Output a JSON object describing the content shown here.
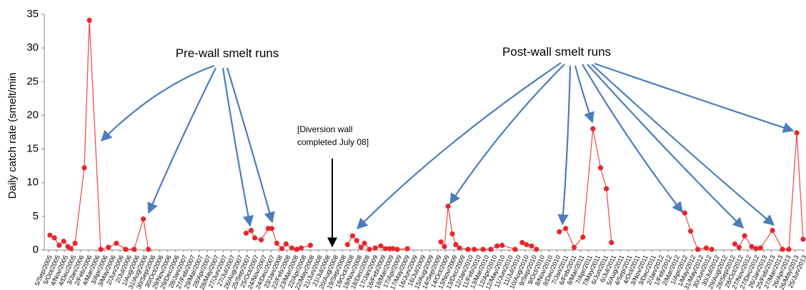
{
  "chart_data": {
    "type": "line",
    "y_label": "Daily catch rate (smelt/min",
    "annotations": [
      "Pre-wall smelt runs",
      "Post-wall smelt runs",
      "[Diversion wall",
      "completed July 08]"
    ],
    "xlim": [
      "2005-09-05",
      "2013-06-25"
    ],
    "ylim": [
      0,
      35
    ],
    "yticks": [
      0,
      5,
      10,
      15,
      20,
      25,
      30,
      35
    ],
    "xticks": [
      {
        "value": "2005-09-05",
        "label": "5/Sep/2005"
      },
      {
        "value": "2005-10-05",
        "label": "5/Oct/2005"
      },
      {
        "value": "2005-11-04",
        "label": "4/Nov/2005"
      },
      {
        "value": "2005-12-04",
        "label": "4/Dec/2005"
      },
      {
        "value": "2006-01-03",
        "label": "3/Jan/2006"
      },
      {
        "value": "2006-02-02",
        "label": "2/Feb/2006"
      },
      {
        "value": "2006-03-04",
        "label": "4/Mar/2006"
      },
      {
        "value": "2006-04-03",
        "label": "3/Apr/2006"
      },
      {
        "value": "2006-05-03",
        "label": "3/May/2006"
      },
      {
        "value": "2006-06-02",
        "label": "2/Jun/2006"
      },
      {
        "value": "2006-07-02",
        "label": "2/Jul/2006"
      },
      {
        "value": "2006-08-01",
        "label": "1/Aug/2006"
      },
      {
        "value": "2006-08-31",
        "label": "31/Aug/2006"
      },
      {
        "value": "2006-09-30",
        "label": "30/Sep/2006"
      },
      {
        "value": "2006-10-30",
        "label": "30/Oct/2006"
      },
      {
        "value": "2006-11-29",
        "label": "29/Nov/2006"
      },
      {
        "value": "2006-12-29",
        "label": "29/Dec/2006"
      },
      {
        "value": "2007-01-28",
        "label": "28/Jan/2007"
      },
      {
        "value": "2007-02-27",
        "label": "27/Feb/2007"
      },
      {
        "value": "2007-03-29",
        "label": "29/Mar/2007"
      },
      {
        "value": "2007-04-28",
        "label": "28/Apr/2007"
      },
      {
        "value": "2007-05-28",
        "label": "28/May/2007"
      },
      {
        "value": "2007-06-27",
        "label": "27/Jun/2007"
      },
      {
        "value": "2007-07-27",
        "label": "27/Jul/2007"
      },
      {
        "value": "2007-08-26",
        "label": "26/Aug/2007"
      },
      {
        "value": "2007-09-25",
        "label": "25/Sep/2007"
      },
      {
        "value": "2007-10-25",
        "label": "25/Oct/2007"
      },
      {
        "value": "2007-11-24",
        "label": "24/Nov/2007"
      },
      {
        "value": "2007-12-24",
        "label": "24/Dec/2007"
      },
      {
        "value": "2008-01-23",
        "label": "23/Jan/2008"
      },
      {
        "value": "2008-02-22",
        "label": "22/Feb/2008"
      },
      {
        "value": "2008-03-23",
        "label": "23/Mar/2008"
      },
      {
        "value": "2008-04-22",
        "label": "22/Apr/2008"
      },
      {
        "value": "2008-05-22",
        "label": "22/May/2008"
      },
      {
        "value": "2008-06-21",
        "label": "21/Jun/2008"
      },
      {
        "value": "2008-07-21",
        "label": "21/Jul/2008"
      },
      {
        "value": "2008-08-20",
        "label": "20/Aug/2008"
      },
      {
        "value": "2008-09-19",
        "label": "19/Sep/2008"
      },
      {
        "value": "2008-10-19",
        "label": "19/Oct/2008"
      },
      {
        "value": "2008-11-18",
        "label": "18/Nov/2008"
      },
      {
        "value": "2008-12-18",
        "label": "18/Dec/2008"
      },
      {
        "value": "2009-01-17",
        "label": "17/Jan/2009"
      },
      {
        "value": "2009-02-16",
        "label": "16/Feb/2009"
      },
      {
        "value": "2009-03-18",
        "label": "18/Mar/2009"
      },
      {
        "value": "2009-04-17",
        "label": "17/Apr/2009"
      },
      {
        "value": "2009-05-17",
        "label": "17/May/2009"
      },
      {
        "value": "2009-06-16",
        "label": "16/Jun/2009"
      },
      {
        "value": "2009-07-16",
        "label": "16/Jul/2009"
      },
      {
        "value": "2009-08-15",
        "label": "15/Aug/2009"
      },
      {
        "value": "2009-09-14",
        "label": "14/Sep/2009"
      },
      {
        "value": "2009-10-14",
        "label": "14/Oct/2009"
      },
      {
        "value": "2009-11-13",
        "label": "13/Nov/2009"
      },
      {
        "value": "2009-12-13",
        "label": "13/Dec/2009"
      },
      {
        "value": "2010-01-12",
        "label": "12/Jan/2010"
      },
      {
        "value": "2010-02-11",
        "label": "11/Feb/2010"
      },
      {
        "value": "2010-03-13",
        "label": "13/Mar/2010"
      },
      {
        "value": "2010-04-12",
        "label": "12/Apr/2010"
      },
      {
        "value": "2010-05-12",
        "label": "12/May/2010"
      },
      {
        "value": "2010-06-11",
        "label": "11/Jun/2010"
      },
      {
        "value": "2010-07-11",
        "label": "11/Jul/2010"
      },
      {
        "value": "2010-08-10",
        "label": "10/Aug/2010"
      },
      {
        "value": "2010-09-09",
        "label": "9/Sep/2010"
      },
      {
        "value": "2010-10-09",
        "label": "9/Oct/2010"
      },
      {
        "value": "2010-11-08",
        "label": "8/Nov/2010"
      },
      {
        "value": "2010-12-08",
        "label": "8/Dec/2010"
      },
      {
        "value": "2011-01-07",
        "label": "7/Jan/2011"
      },
      {
        "value": "2011-02-06",
        "label": "6/Feb/2011"
      },
      {
        "value": "2011-03-08",
        "label": "8/Mar/2011"
      },
      {
        "value": "2011-04-07",
        "label": "7/Apr/2011"
      },
      {
        "value": "2011-05-07",
        "label": "7/May/2011"
      },
      {
        "value": "2011-06-06",
        "label": "6/Jun/2011"
      },
      {
        "value": "2011-07-06",
        "label": "6/Jul/2011"
      },
      {
        "value": "2011-08-05",
        "label": "5/Aug/2011"
      },
      {
        "value": "2011-09-04",
        "label": "4/Sep/2011"
      },
      {
        "value": "2011-10-04",
        "label": "4/Oct/2011"
      },
      {
        "value": "2011-11-03",
        "label": "3/Nov/2011"
      },
      {
        "value": "2011-12-03",
        "label": "3/Dec/2011"
      },
      {
        "value": "2012-01-02",
        "label": "2/Jan/2012"
      },
      {
        "value": "2012-02-01",
        "label": "1/Feb/2012"
      },
      {
        "value": "2012-03-02",
        "label": "2/Mar/2012"
      },
      {
        "value": "2012-04-01",
        "label": "1/Apr/2012"
      },
      {
        "value": "2012-05-01",
        "label": "1/May/2012"
      },
      {
        "value": "2012-05-31",
        "label": "31/May/2012"
      },
      {
        "value": "2012-06-30",
        "label": "30/Jun/2012"
      },
      {
        "value": "2012-07-30",
        "label": "30/Jul/2012"
      },
      {
        "value": "2012-08-29",
        "label": "29/Aug/2012"
      },
      {
        "value": "2012-09-28",
        "label": "28/Sep/2012"
      },
      {
        "value": "2012-10-28",
        "label": "28/Oct/2012"
      },
      {
        "value": "2012-11-27",
        "label": "27/Nov/2012"
      },
      {
        "value": "2012-12-27",
        "label": "27/Dec/2012"
      },
      {
        "value": "2013-01-26",
        "label": "26/Jan/2013"
      },
      {
        "value": "2013-02-25",
        "label": "25/Feb/2013"
      },
      {
        "value": "2013-03-27",
        "label": "27/Mar/2013"
      },
      {
        "value": "2013-04-26",
        "label": "26/Apr/2013"
      },
      {
        "value": "2013-05-26",
        "label": "26/May/2013"
      },
      {
        "value": "2013-06-25",
        "label": "25/Jun/2013"
      }
    ],
    "series": [
      {
        "color": "#e8262b",
        "x": [
          "2005-09-10",
          "2005-09-27",
          "2005-10-15",
          "2005-11-01",
          "2005-11-17",
          "2005-11-28",
          "2005-12-14",
          "2006-01-18",
          "2006-02-06",
          "2006-03-21",
          "2006-04-19",
          "2006-05-19",
          "2006-06-23",
          "2006-07-25",
          "2006-08-29",
          "2006-09-17",
          "2007-03-01",
          "2007-09-21",
          "2007-10-10",
          "2007-10-24",
          "2007-11-17",
          "2007-12-14",
          "2007-12-27",
          "2008-01-15",
          "2008-02-03",
          "2008-02-19",
          "2008-03-12",
          "2008-03-31",
          "2008-04-16",
          "2008-05-21",
          "2008-08-01",
          "2008-10-08",
          "2008-10-27",
          "2008-11-12",
          "2008-11-28",
          "2008-12-11",
          "2008-12-30",
          "2009-01-21",
          "2009-02-11",
          "2009-02-28",
          "2009-03-16",
          "2009-03-29",
          "2009-04-14",
          "2009-05-22",
          "2009-07-20",
          "2009-09-26",
          "2009-10-09",
          "2009-10-23",
          "2009-11-08",
          "2009-11-21",
          "2009-12-05",
          "2010-01-06",
          "2010-01-30",
          "2010-03-04",
          "2010-04-02",
          "2010-04-26",
          "2010-05-15",
          "2010-07-03",
          "2010-07-18",
          "2010-07-30",
          "2010-08-15",
          "2010-09-03",
          "2010-09-22",
          "2010-11-01",
          "2010-12-17",
          "2011-01-10",
          "2011-02-11",
          "2011-03-16",
          "2011-04-23",
          "2011-05-22",
          "2011-06-13",
          "2011-07-02",
          "2011-11-01",
          "2012-04-04",
          "2012-04-26",
          "2012-05-23",
          "2012-06-24",
          "2012-07-15",
          "2012-09-01",
          "2012-10-10",
          "2012-10-26",
          "2012-11-16",
          "2012-12-13",
          "2012-12-29",
          "2013-01-15",
          "2013-03-01",
          "2013-04-08",
          "2013-05-02",
          "2013-06-01",
          "2013-06-25"
        ],
        "values": [
          2.2,
          1.8,
          0.7,
          1.3,
          0.5,
          0.2,
          1.0,
          12.2,
          34.1,
          0.1,
          0.4,
          1.0,
          0.1,
          0.1,
          4.6,
          0.1,
          null,
          2.5,
          2.9,
          1.8,
          1.5,
          3.2,
          3.2,
          1.0,
          0.2,
          0.9,
          0.3,
          0.1,
          0.3,
          0.7,
          null,
          0.8,
          2.1,
          1.4,
          0.4,
          1.0,
          0.1,
          0.3,
          0.6,
          0.2,
          0.2,
          0.2,
          0.1,
          0.2,
          null,
          1.2,
          0.5,
          6.5,
          2.4,
          0.8,
          0.3,
          0.1,
          0.1,
          0.1,
          0.1,
          0.6,
          0.7,
          0.1,
          null,
          1.1,
          0.8,
          0.6,
          0.1,
          null,
          2.7,
          3.2,
          0.4,
          1.9,
          18.0,
          12.2,
          9.1,
          1.1,
          null,
          5.5,
          2.8,
          0.1,
          0.3,
          0.1,
          null,
          0.9,
          0.4,
          2.1,
          0.5,
          0.2,
          0.3,
          2.9,
          0.1,
          0.1,
          17.4,
          1.6
        ]
      }
    ]
  }
}
